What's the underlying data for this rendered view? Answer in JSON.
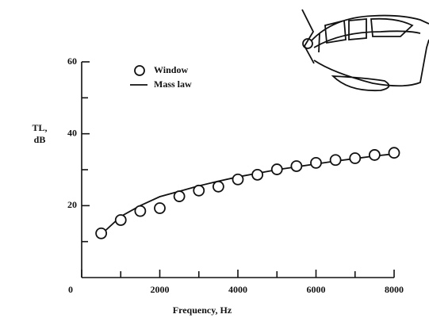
{
  "chart_data": {
    "type": "scatter-line",
    "xlabel": "Frequency, Hz",
    "ylabel": [
      "TL,",
      "dB"
    ],
    "x": [
      500,
      1000,
      1500,
      2000,
      2500,
      3000,
      3500,
      4000,
      4500,
      5000,
      5500,
      6000,
      6500,
      7000,
      7500,
      8000
    ],
    "series": [
      {
        "name": "Window",
        "style": "circles",
        "color": "#111111",
        "values": [
          12.3,
          16,
          18.5,
          19.3,
          22.6,
          24.2,
          25.3,
          27.3,
          28.6,
          30.1,
          31,
          31.9,
          32.7,
          33.2,
          34.1,
          34.7
        ]
      },
      {
        "name": "Mass law",
        "style": "line",
        "color": "#111111",
        "values": [
          12,
          17,
          20,
          22.5,
          24,
          25.5,
          26.8,
          28,
          29,
          30,
          30.8,
          31.6,
          32.4,
          33.1,
          33.8,
          34.4
        ]
      }
    ],
    "xlim": [
      0,
      8000
    ],
    "ylim": [
      0,
      60
    ],
    "xticks": [
      0,
      2000,
      4000,
      6000,
      8000
    ],
    "x_minor_ticks": [
      1000,
      3000,
      5000,
      7000
    ],
    "yticks": [
      20,
      40,
      60
    ],
    "y_minor_ticks": [
      10,
      30,
      50
    ]
  }
}
